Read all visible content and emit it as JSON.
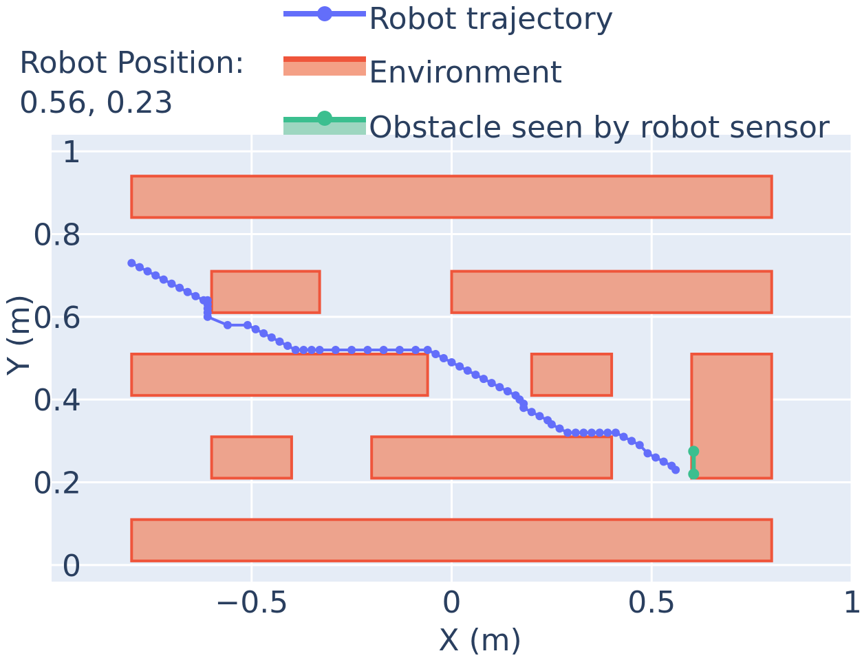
{
  "annotation": {
    "line1": "Robot Position:",
    "line2": "0.56, 0.23"
  },
  "legend": {
    "placement": "top-right",
    "items": [
      {
        "label": "Robot trajectory",
        "kind": "line-marker",
        "color": "#636efa"
      },
      {
        "label": "Environment",
        "kind": "fill",
        "color": "#ef553b",
        "fill": "#f4a086"
      },
      {
        "label": "Obstacle seen by robot sensor",
        "kind": "line-marker-fill",
        "color": "#3bbf8f",
        "fill": "#9dd6c0"
      }
    ]
  },
  "colors": {
    "plot_bg": "#e5ecf6",
    "grid": "#ffffff",
    "text": "#2a3f5f",
    "trajectory": "#636efa",
    "environment_line": "#ef553b",
    "environment_fill": "#eda38d",
    "obstacle": "#3bbf8f"
  },
  "chart_data": {
    "type": "scatter",
    "xlabel": "X (m)",
    "ylabel": "Y (m)",
    "xlim": [
      -1.0,
      1.0
    ],
    "ylim": [
      -0.04,
      1.04
    ],
    "xticks": [
      -0.5,
      0,
      0.5,
      1
    ],
    "xtick_labels": [
      "−0.5",
      "0",
      "0.5",
      "1"
    ],
    "yticks": [
      0,
      0.2,
      0.4,
      0.6,
      0.8,
      1
    ],
    "ytick_labels": [
      "0",
      "0.2",
      "0.4",
      "0.6",
      "0.8",
      "1"
    ],
    "grid": true,
    "environment": [
      {
        "x0": -0.8,
        "x1": 0.8,
        "y0": 0.84,
        "y1": 0.94
      },
      {
        "x0": -0.6,
        "x1": -0.33,
        "y0": 0.61,
        "y1": 0.71
      },
      {
        "x0": 0.0,
        "x1": 0.8,
        "y0": 0.61,
        "y1": 0.71
      },
      {
        "x0": -0.8,
        "x1": -0.06,
        "y0": 0.41,
        "y1": 0.51
      },
      {
        "x0": 0.2,
        "x1": 0.4,
        "y0": 0.41,
        "y1": 0.51
      },
      {
        "x0": 0.6,
        "x1": 0.8,
        "y0": 0.21,
        "y1": 0.51
      },
      {
        "x0": -0.6,
        "x1": -0.4,
        "y0": 0.21,
        "y1": 0.31
      },
      {
        "x0": -0.2,
        "x1": 0.4,
        "y0": 0.21,
        "y1": 0.31
      },
      {
        "x0": -0.8,
        "x1": 0.8,
        "y0": 0.01,
        "y1": 0.11
      }
    ],
    "trajectory": {
      "x": [
        -0.8,
        -0.78,
        -0.76,
        -0.74,
        -0.72,
        -0.7,
        -0.68,
        -0.66,
        -0.64,
        -0.62,
        -0.61,
        -0.61,
        -0.61,
        -0.61,
        -0.61,
        -0.56,
        -0.51,
        -0.49,
        -0.47,
        -0.45,
        -0.43,
        -0.41,
        -0.39,
        -0.37,
        -0.35,
        -0.33,
        -0.29,
        -0.25,
        -0.21,
        -0.17,
        -0.13,
        -0.09,
        -0.06,
        -0.04,
        -0.02,
        0.0,
        0.02,
        0.04,
        0.06,
        0.08,
        0.1,
        0.12,
        0.14,
        0.16,
        0.17,
        0.18,
        0.18,
        0.2,
        0.22,
        0.24,
        0.25,
        0.27,
        0.29,
        0.31,
        0.33,
        0.35,
        0.37,
        0.39,
        0.41,
        0.43,
        0.45,
        0.47,
        0.49,
        0.51,
        0.53,
        0.55,
        0.56
      ],
      "y": [
        0.73,
        0.72,
        0.71,
        0.7,
        0.69,
        0.68,
        0.67,
        0.66,
        0.65,
        0.64,
        0.63,
        0.64,
        0.62,
        0.61,
        0.6,
        0.58,
        0.58,
        0.57,
        0.56,
        0.55,
        0.54,
        0.53,
        0.52,
        0.52,
        0.52,
        0.52,
        0.52,
        0.52,
        0.52,
        0.52,
        0.52,
        0.52,
        0.52,
        0.51,
        0.5,
        0.49,
        0.48,
        0.47,
        0.46,
        0.45,
        0.44,
        0.43,
        0.42,
        0.41,
        0.4,
        0.39,
        0.38,
        0.37,
        0.36,
        0.35,
        0.34,
        0.33,
        0.32,
        0.32,
        0.32,
        0.32,
        0.32,
        0.32,
        0.32,
        0.31,
        0.3,
        0.29,
        0.27,
        0.26,
        0.25,
        0.24,
        0.23
      ]
    },
    "obstacle": {
      "x": [
        0.605,
        0.605
      ],
      "y": [
        0.275,
        0.22
      ]
    }
  }
}
